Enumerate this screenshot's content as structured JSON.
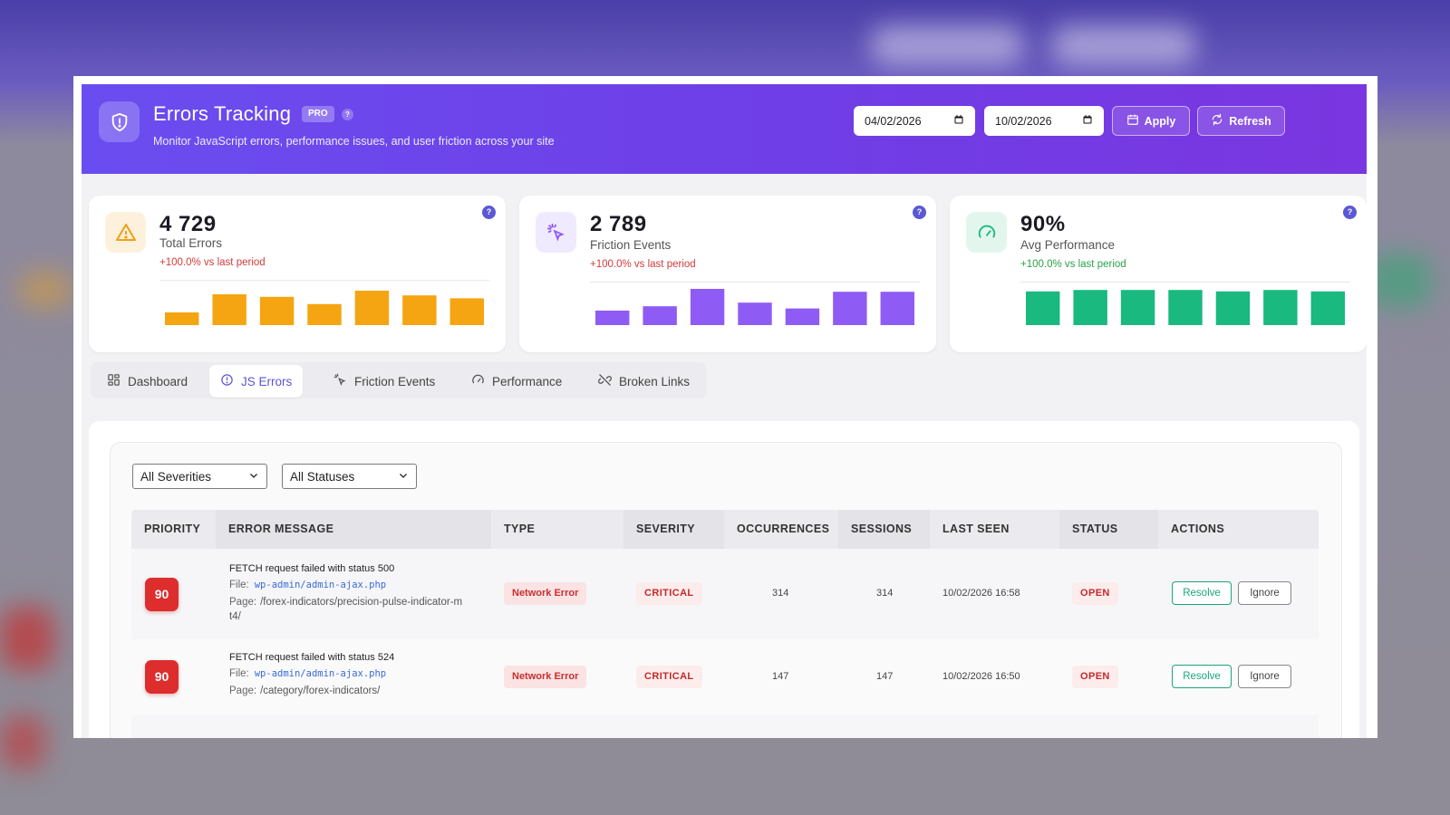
{
  "header": {
    "title": "Errors Tracking",
    "badge": "PRO",
    "help": "?",
    "subtitle": "Monitor JavaScript errors, performance issues, and user friction across your site",
    "date_from": "04/02/2026",
    "date_to": "10/02/2026",
    "apply_label": "Apply",
    "refresh_label": "Refresh"
  },
  "stats": [
    {
      "value": "4 729",
      "label": "Total Errors",
      "change": "+100.0% vs last period",
      "change_color": "#d23b3b",
      "color": "#f5a511",
      "icon": "warning-icon",
      "bars": [
        0.35,
        0.85,
        0.78,
        0.58,
        0.95,
        0.82,
        0.74
      ]
    },
    {
      "value": "2 789",
      "label": "Friction Events",
      "change": "+100.0% vs last period",
      "change_color": "#d23b3b",
      "color": "#8e5cf5",
      "icon": "cursor-click-icon",
      "bars": [
        0.4,
        0.52,
        1.0,
        0.62,
        0.46,
        0.92,
        0.92
      ]
    },
    {
      "value": "90%",
      "label": "Avg Performance",
      "change": "+100.0% vs last period",
      "change_color": "#2aa14a",
      "color": "#19b97f",
      "icon": "gauge-icon",
      "bars": [
        0.93,
        0.97,
        0.97,
        0.97,
        0.93,
        0.97,
        0.93
      ]
    }
  ],
  "stat_help": "?",
  "tabs": [
    {
      "label": "Dashboard",
      "icon": "grid-icon"
    },
    {
      "label": "JS Errors",
      "icon": "alert-circle-icon",
      "active": true
    },
    {
      "label": "Friction Events",
      "icon": "cursor-click-icon"
    },
    {
      "label": "Performance",
      "icon": "gauge-icon"
    },
    {
      "label": "Broken Links",
      "icon": "broken-link-icon"
    }
  ],
  "filters": {
    "severity": "All Severities",
    "status": "All Statuses"
  },
  "table": {
    "columns": [
      "PRIORITY",
      "ERROR MESSAGE",
      "TYPE",
      "SEVERITY",
      "OCCURRENCES",
      "SESSIONS",
      "LAST SEEN",
      "STATUS",
      "ACTIONS"
    ],
    "file_label": "File:",
    "page_label": "Page:",
    "resolve_label": "Resolve",
    "ignore_label": "Ignore",
    "rows": [
      {
        "priority": "90",
        "message": "FETCH request failed with status 500",
        "file": "wp-admin/admin-ajax.php",
        "page_line1": "/forex-indicators/precision-pulse-indicator-m",
        "page_line2": "t4/",
        "type": "Network Error",
        "severity": "CRITICAL",
        "occurrences": "314",
        "sessions": "314",
        "last_seen": "10/02/2026 16:58",
        "status": "OPEN"
      },
      {
        "priority": "90",
        "message": "FETCH request failed with status 524",
        "file": "wp-admin/admin-ajax.php",
        "page_line1": "/category/forex-indicators/",
        "type": "Network Error",
        "severity": "CRITICAL",
        "occurrences": "147",
        "sessions": "147",
        "last_seen": "10/02/2026 16:50",
        "status": "OPEN"
      }
    ]
  }
}
